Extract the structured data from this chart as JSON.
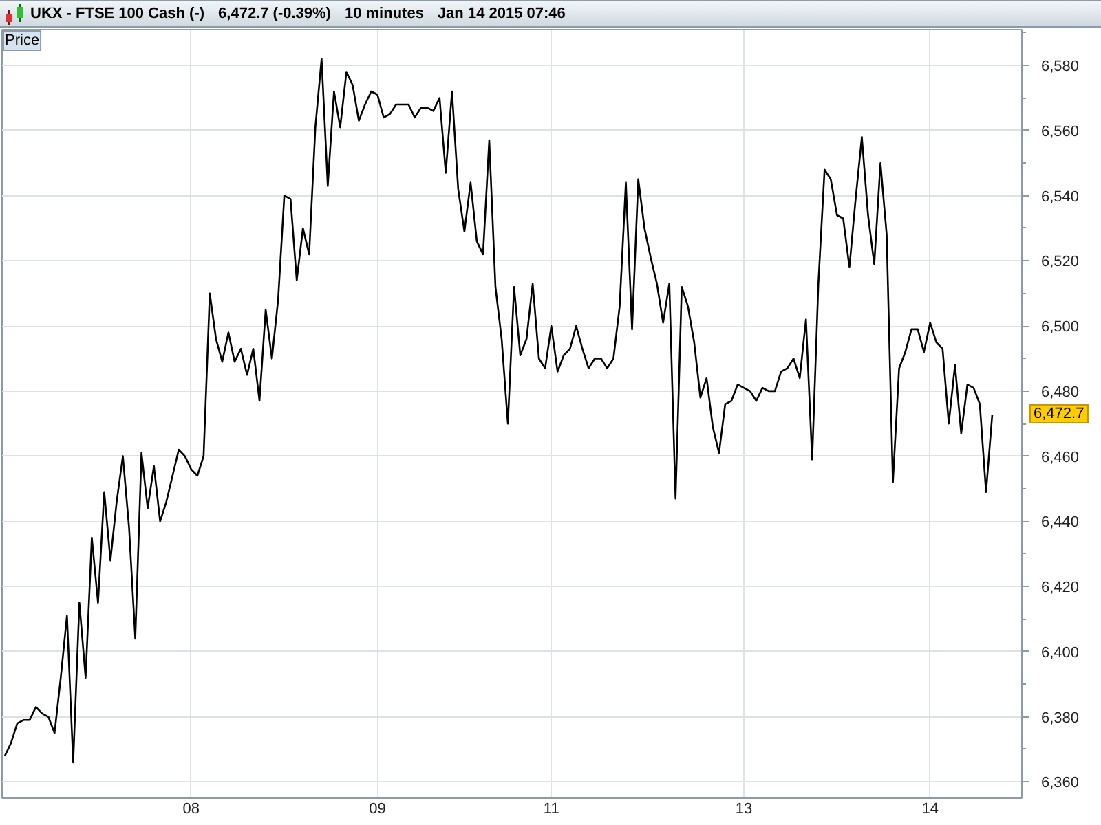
{
  "chart_data": {
    "type": "line",
    "title": "UKX - FTSE 100 Cash (-)",
    "ylabel": "Price",
    "annotations": [
      "6,472.7 (-0.39%)",
      "10 minutes",
      "Jan 14 2015 07:46",
      "6,472.7"
    ],
    "categories": [
      null,
      null,
      null,
      null,
      null,
      null,
      null,
      null,
      null,
      null,
      null,
      null,
      null,
      null,
      null,
      null,
      null,
      null,
      null,
      null,
      null,
      null,
      null,
      null,
      null,
      null,
      null,
      null,
      null,
      null,
      "08",
      null,
      null,
      null,
      null,
      null,
      null,
      null,
      null,
      null,
      null,
      null,
      null,
      null,
      null,
      null,
      null,
      null,
      null,
      null,
      null,
      null,
      null,
      null,
      null,
      null,
      null,
      null,
      null,
      null,
      "09",
      null,
      null,
      null,
      null,
      null,
      null,
      null,
      null,
      null,
      null,
      null,
      null,
      null,
      null,
      null,
      null,
      null,
      null,
      null,
      null,
      null,
      null,
      null,
      null,
      null,
      null,
      null,
      "11",
      null,
      null,
      null,
      null,
      null,
      null,
      null,
      null,
      null,
      null,
      null,
      null,
      null,
      null,
      null,
      null,
      null,
      null,
      null,
      null,
      null,
      null,
      null,
      null,
      null,
      null,
      null,
      null,
      null,
      null,
      "13",
      null,
      null,
      null,
      null,
      null,
      null,
      null,
      null,
      null,
      null,
      null,
      null,
      null,
      null,
      null,
      null,
      null,
      null,
      null,
      null,
      null,
      null,
      null,
      null,
      null,
      null,
      null,
      null,
      null,
      "14",
      null,
      null,
      null,
      null,
      null,
      null,
      null,
      null,
      null,
      null
    ],
    "values": [
      6368,
      6372,
      6378,
      6379,
      6379,
      6383,
      6381,
      6380,
      6375,
      6392,
      6411,
      6366,
      6415,
      6392,
      6435,
      6415,
      6449,
      6428,
      6446,
      6460,
      6438,
      6404,
      6461,
      6444,
      6457,
      6440,
      6446,
      6454,
      6462,
      6460,
      6456,
      6454,
      6460,
      6510,
      6496,
      6489,
      6498,
      6489,
      6493,
      6485,
      6493,
      6477,
      6505,
      6490,
      6508,
      6540,
      6539,
      6514,
      6530,
      6522,
      6561,
      6582,
      6543,
      6572,
      6561,
      6578,
      6574,
      6563,
      6568,
      6572,
      6571,
      6564,
      6565,
      6568,
      6568,
      6568,
      6564,
      6567,
      6567,
      6566,
      6570,
      6547,
      6572,
      6542,
      6529,
      6544,
      6526,
      6522,
      6557,
      6512,
      6496,
      6470,
      6512,
      6491,
      6496,
      6513,
      6490,
      6487,
      6500,
      6486,
      6491,
      6493,
      6500,
      6493,
      6487,
      6490,
      6490,
      6487,
      6490,
      6506,
      6544,
      6499,
      6545,
      6530,
      6521,
      6513,
      6501,
      6513,
      6447,
      6512,
      6506,
      6495,
      6478,
      6484,
      6469,
      6461,
      6476,
      6477,
      6482,
      6481,
      6480,
      6477,
      6481,
      6480,
      6480,
      6486,
      6487,
      6490,
      6484,
      6502,
      6459,
      6513,
      6548,
      6545,
      6534,
      6533,
      6518,
      6539,
      6558,
      6534,
      6519,
      6550,
      6528,
      6452,
      6487,
      6492,
      6499,
      6499,
      6492,
      6501,
      6495,
      6493,
      6470,
      6488,
      6467,
      6482,
      6481,
      6476,
      6449,
      6472.7
    ],
    "color": "#000000",
    "line_style": "solid",
    "ylim": [
      6355,
      6591
    ],
    "yticks": [
      {
        "value": 6360,
        "label": "6,360"
      },
      {
        "value": 6380,
        "label": "6,380"
      },
      {
        "value": 6400,
        "label": "6,400"
      },
      {
        "value": 6420,
        "label": "6,420"
      },
      {
        "value": 6440,
        "label": "6,440"
      },
      {
        "value": 6460,
        "label": "6,460"
      },
      {
        "value": 6480,
        "label": "6,480"
      },
      {
        "value": 6500,
        "label": "6,500"
      },
      {
        "value": 6520,
        "label": "6,520"
      },
      {
        "value": 6540,
        "label": "6,540"
      },
      {
        "value": 6560,
        "label": "6,560"
      },
      {
        "value": 6580,
        "label": "6,580"
      }
    ],
    "grid": true
  }
}
